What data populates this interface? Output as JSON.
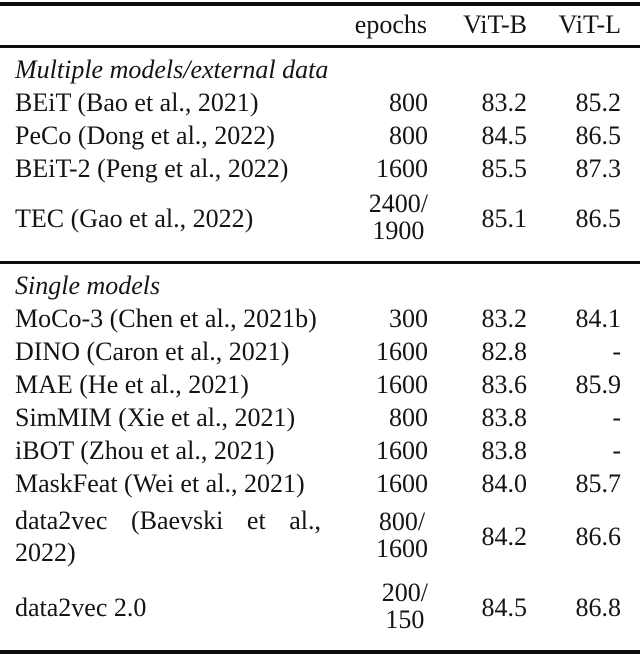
{
  "table": {
    "header": {
      "method": "",
      "epochs": "epochs",
      "vitb": "ViT-B",
      "vitl": "ViT-L"
    },
    "text_color": "#141414",
    "rule_color": "#0d0d0d",
    "sections": [
      {
        "label": "Multiple models/external data",
        "rows": [
          {
            "method": "BEiT (Bao et al., 2021)",
            "epochs": "800",
            "vitb": "83.2",
            "vitl": "85.2"
          },
          {
            "method": "PeCo (Dong et al., 2022)",
            "epochs": "800",
            "vitb": "84.5",
            "vitl": "86.5"
          },
          {
            "method": "BEiT-2 (Peng et al., 2022)",
            "epochs": "1600",
            "vitb": "85.5",
            "vitl": "87.3"
          },
          {
            "method": "TEC (Gao et al., 2022)",
            "epochs": [
              "2400/",
              "1900"
            ],
            "vitb": "85.1",
            "vitl": "86.5"
          }
        ]
      },
      {
        "label": "Single models",
        "rows": [
          {
            "method": "MoCo-3 (Chen et al., 2021b)",
            "epochs": "300",
            "vitb": "83.2",
            "vitl": "84.1"
          },
          {
            "method": "DINO (Caron et al., 2021)",
            "epochs": "1600",
            "vitb": "82.8",
            "vitl": "-"
          },
          {
            "method": "MAE (He et al., 2021)",
            "epochs": "1600",
            "vitb": "83.6",
            "vitl": "85.9"
          },
          {
            "method": "SimMIM (Xie et al., 2021)",
            "epochs": "800",
            "vitb": "83.8",
            "vitl": "-"
          },
          {
            "method": "iBOT (Zhou et al., 2021)",
            "epochs": "1600",
            "vitb": "83.8",
            "vitl": "-"
          },
          {
            "method": "MaskFeat (Wei et al., 2021)",
            "epochs": "1600",
            "vitb": "84.0",
            "vitl": "85.7"
          },
          {
            "method": "data2vec (Baevski et al., 2022)",
            "method_line1_words": [
              "data2vec",
              "(Baevski",
              "et",
              "al.,"
            ],
            "method_line2": "2022)",
            "epochs": [
              "800/",
              "1600"
            ],
            "vitb": "84.2",
            "vitl": "86.6"
          },
          {
            "method": "data2vec 2.0",
            "epochs": [
              "200/",
              "150"
            ],
            "vitb": "84.5",
            "vitl": "86.8"
          }
        ]
      }
    ]
  }
}
